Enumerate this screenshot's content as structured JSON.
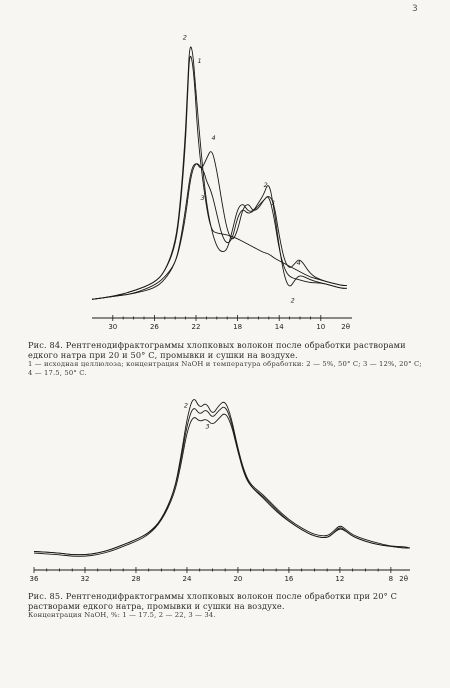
{
  "page": {
    "number": "3"
  },
  "figure84": {
    "caption": "Рис. 84. Рентгенодифрактограммы хлопковых волокон после обработки растворами едкого натра при 20 и 50° С, промывки и сушки на воздухе.",
    "note": "1 — исходная целлюлоза; концентрация NaOH и температура обработки: 2 — 5%, 50° С; 3 — 12%, 20° С; 4 — 17.5, 50° С.",
    "chart_data": {
      "type": "line",
      "xlabel": "2θ",
      "xlim": [
        32,
        7
      ],
      "ylim": [
        0,
        100
      ],
      "ticks": [
        30,
        26,
        22,
        18,
        14,
        10
      ],
      "tick_labels": [
        "30",
        "26",
        "22",
        "18",
        "14",
        "10",
        "2θ"
      ],
      "series": [
        {
          "name": "1",
          "x": [
            32,
            30,
            28,
            26,
            25,
            24,
            23.5,
            23,
            22.8,
            22.6,
            22.2,
            21.8,
            21,
            20.5,
            20,
            19,
            18,
            17.5,
            17,
            16.5,
            16,
            15.5,
            15,
            14.5,
            14,
            13,
            12,
            11,
            10,
            9,
            8,
            7.5
          ],
          "y": [
            5,
            6,
            8,
            11,
            15,
            24,
            38,
            62,
            80,
            96,
            88,
            62,
            38,
            30,
            29,
            28.5,
            27,
            26,
            25,
            24,
            23,
            22,
            21.5,
            20,
            19,
            17,
            15,
            13,
            12,
            11,
            10,
            10
          ]
        },
        {
          "name": "2",
          "x": [
            32,
            30,
            28,
            26,
            25,
            24,
            23.5,
            23,
            22.8,
            22.6,
            22.3,
            22,
            21.5,
            21,
            20.5,
            20,
            19.5,
            19,
            18.5,
            18,
            17.5,
            17,
            16.5,
            16,
            15.5,
            15,
            14.5,
            14,
            13.5,
            13,
            12.5,
            12,
            11,
            10,
            9,
            8,
            7.5
          ],
          "y": [
            5,
            6,
            8,
            11,
            15,
            25,
            40,
            66,
            84,
            98,
            95,
            80,
            58,
            40,
            30,
            24,
            22,
            23,
            30,
            38,
            40,
            37,
            37,
            40,
            43,
            48,
            38,
            24,
            13,
            9,
            12,
            14,
            12,
            11,
            10,
            9,
            9
          ]
        },
        {
          "name": "3",
          "x": [
            32,
            30,
            28,
            26,
            25,
            24,
            23.5,
            23,
            22.5,
            22,
            21.5,
            21.2,
            21,
            20.5,
            20,
            19.5,
            19,
            18.5,
            18,
            17.5,
            17,
            16.5,
            16,
            15.5,
            15,
            14.5,
            14,
            13.5,
            13,
            12,
            11,
            10,
            9,
            8,
            7.5
          ],
          "y": [
            5,
            6,
            7,
            10,
            13,
            18,
            25,
            35,
            50,
            55,
            53,
            51,
            48,
            44,
            36,
            28,
            25,
            27,
            35,
            38,
            36,
            37,
            39,
            41,
            43,
            35,
            23,
            16,
            13,
            12,
            11,
            11,
            10,
            9,
            9
          ]
        },
        {
          "name": "4",
          "x": [
            32,
            30,
            28,
            26,
            25,
            24,
            23.5,
            23,
            22.5,
            22,
            21.5,
            21,
            20.5,
            20,
            19.5,
            19,
            18.5,
            18,
            17.5,
            17,
            16.5,
            16,
            15.5,
            15,
            14.5,
            14,
            13.5,
            13,
            12.5,
            12,
            11,
            10,
            9,
            8,
            7.5
          ],
          "y": [
            5,
            6,
            7,
            9,
            12,
            18,
            26,
            38,
            52,
            55,
            52,
            56,
            60,
            52,
            40,
            30,
            26,
            30,
            38,
            40,
            37,
            38,
            41,
            43,
            40,
            28,
            19,
            16,
            18,
            20,
            14,
            12,
            11,
            10,
            10
          ]
        }
      ]
    }
  },
  "figure85": {
    "caption": "Рис. 85. Рентгенодифрактограммы хлопковых волокон после обработки при 20° С растворами едкого натра, промывки и сушки на воздухе.",
    "note": "Концентрация NaOH, %: 1 — 17.5, 2 — 22, 3 — 34.",
    "chart_data": {
      "type": "line",
      "xlabel": "2θ",
      "xlim": [
        36,
        6.5
      ],
      "ylim": [
        0,
        100
      ],
      "ticks": [
        36,
        32,
        28,
        24,
        20,
        16,
        12,
        8
      ],
      "tick_labels": [
        "36",
        "32",
        "28",
        "24",
        "20",
        "16",
        "12",
        "8",
        "2θ"
      ],
      "series": [
        {
          "name": "1",
          "x": [
            36,
            34,
            33,
            32,
            31,
            30,
            29,
            28,
            27,
            26,
            25,
            24.5,
            24,
            23.5,
            23,
            22.5,
            22,
            21.5,
            21,
            20.5,
            20,
            19.5,
            19,
            18,
            17,
            16,
            15,
            14,
            13,
            12.5,
            12,
            11.5,
            11,
            10,
            9,
            8,
            7,
            6.5
          ],
          "y": [
            3,
            2,
            1,
            1,
            2,
            4,
            7,
            10,
            14,
            22,
            40,
            60,
            84,
            98,
            90,
            94,
            86,
            92,
            95,
            84,
            66,
            52,
            44,
            38,
            30,
            23,
            18,
            14,
            13,
            16,
            20,
            17,
            14,
            11,
            9,
            7,
            7,
            6
          ]
        },
        {
          "name": "2",
          "x": [
            36,
            34,
            33,
            32,
            31,
            30,
            29,
            28,
            27,
            26,
            25,
            24.5,
            24,
            23.5,
            23,
            22.5,
            22,
            21.5,
            21,
            20.5,
            20,
            19.5,
            19,
            18,
            17,
            16,
            15,
            14,
            13,
            12.5,
            12,
            11.5,
            11,
            10,
            9,
            8,
            7,
            6.5
          ],
          "y": [
            4,
            3,
            2,
            2,
            3,
            5,
            8,
            11,
            15,
            23,
            40,
            58,
            80,
            92,
            86,
            90,
            84,
            89,
            92,
            82,
            65,
            51,
            43,
            37,
            29,
            22,
            17,
            13,
            12,
            15,
            19,
            16,
            13,
            10,
            8,
            7,
            6,
            6
          ]
        },
        {
          "name": "3",
          "x": [
            36,
            34,
            33,
            32,
            31,
            30,
            29,
            28,
            27,
            26,
            25,
            24.5,
            24,
            23.5,
            23,
            22.5,
            22,
            21.5,
            21,
            20.5,
            20,
            19.5,
            19,
            18,
            17,
            16,
            15,
            14,
            13,
            12.5,
            12,
            11.5,
            11,
            10,
            9,
            8,
            7,
            6.5
          ],
          "y": [
            4,
            3,
            2,
            2,
            3,
            5,
            8,
            11,
            15,
            22,
            38,
            55,
            76,
            86,
            82,
            84,
            80,
            84,
            88,
            80,
            64,
            50,
            43,
            36,
            28,
            22,
            17,
            13,
            12,
            15,
            18,
            16,
            13,
            10,
            8,
            7,
            6,
            6
          ]
        }
      ]
    }
  }
}
